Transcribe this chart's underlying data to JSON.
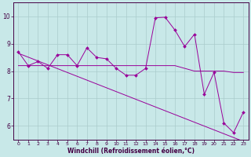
{
  "x": [
    0,
    1,
    2,
    3,
    4,
    5,
    6,
    7,
    8,
    9,
    10,
    11,
    12,
    13,
    14,
    15,
    16,
    17,
    18,
    19,
    20,
    21,
    22,
    23
  ],
  "y_zigzag": [
    8.7,
    8.2,
    8.35,
    8.1,
    8.6,
    8.6,
    8.2,
    8.85,
    8.5,
    8.45,
    8.1,
    7.85,
    7.85,
    8.1,
    9.95,
    9.97,
    9.5,
    8.9,
    9.35,
    7.15,
    7.95,
    6.1,
    5.75,
    6.5
  ],
  "y_flat": [
    8.2,
    8.2,
    8.2,
    8.2,
    8.2,
    8.2,
    8.2,
    8.2,
    8.2,
    8.2,
    8.2,
    8.2,
    8.2,
    8.2,
    8.2,
    8.2,
    8.2,
    8.1,
    8.0,
    8.0,
    8.0,
    8.0,
    7.95,
    7.95
  ],
  "y_trend": [
    8.65,
    8.51,
    8.37,
    8.23,
    8.09,
    7.95,
    7.81,
    7.67,
    7.53,
    7.39,
    7.25,
    7.11,
    6.97,
    6.83,
    6.69,
    6.55,
    6.41,
    6.27,
    6.13,
    5.99,
    5.85,
    5.71,
    5.57,
    5.43
  ],
  "line_color": "#990099",
  "bg_color": "#c8e8e8",
  "grid_color": "#aacccc",
  "text_color": "#440044",
  "axis_bg_color": "#440044",
  "xlabel": "Windchill (Refroidissement éolien,°C)",
  "ylim": [
    5.5,
    10.5
  ],
  "xlim": [
    -0.5,
    23.5
  ],
  "yticks": [
    6,
    7,
    8,
    9,
    10
  ],
  "xticks": [
    0,
    1,
    2,
    3,
    4,
    5,
    6,
    7,
    8,
    9,
    10,
    11,
    12,
    13,
    14,
    15,
    16,
    17,
    18,
    19,
    20,
    21,
    22,
    23
  ]
}
